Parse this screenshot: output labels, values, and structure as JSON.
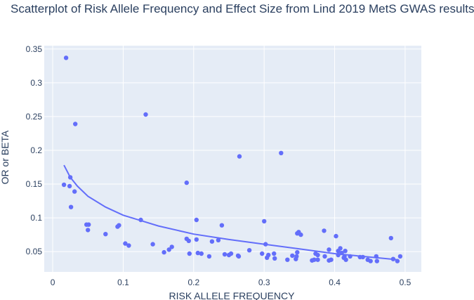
{
  "chart_data": {
    "type": "scatter",
    "title": "Scatterplot of Risk Allele Frequency and Effect Size from Lind 2019 MetS GWAS results",
    "xlabel": "RISK ALLELE FREQUENCY",
    "ylabel": "OR or BETA",
    "xlim": [
      -0.012,
      0.523
    ],
    "ylim": [
      0.02,
      0.355
    ],
    "x_ticks": [
      0,
      0.1,
      0.2,
      0.3,
      0.4,
      0.5
    ],
    "x_tick_labels": [
      "0",
      "0.1",
      "0.2",
      "0.3",
      "0.4",
      "0.5"
    ],
    "y_ticks": [
      0.05,
      0.1,
      0.15,
      0.2,
      0.25,
      0.3,
      0.35
    ],
    "y_tick_labels": [
      "0.05",
      "0.1",
      "0.15",
      "0.2",
      "0.25",
      "0.3",
      "0.35"
    ],
    "grid": true,
    "colors": {
      "marker": "#636efa",
      "plot_bg": "#e5ecf6",
      "grid": "#ffffff",
      "text": "#2a3f5f"
    },
    "points": [
      [
        0.019,
        0.337
      ],
      [
        0.032,
        0.239
      ],
      [
        0.132,
        0.253
      ],
      [
        0.265,
        0.191
      ],
      [
        0.324,
        0.196
      ],
      [
        0.016,
        0.149
      ],
      [
        0.024,
        0.147
      ],
      [
        0.025,
        0.16
      ],
      [
        0.031,
        0.139
      ],
      [
        0.026,
        0.116
      ],
      [
        0.19,
        0.152
      ],
      [
        0.048,
        0.09
      ],
      [
        0.051,
        0.09
      ],
      [
        0.05,
        0.082
      ],
      [
        0.075,
        0.076
      ],
      [
        0.092,
        0.087
      ],
      [
        0.094,
        0.089
      ],
      [
        0.103,
        0.062
      ],
      [
        0.108,
        0.059
      ],
      [
        0.125,
        0.097
      ],
      [
        0.142,
        0.061
      ],
      [
        0.158,
        0.049
      ],
      [
        0.165,
        0.053
      ],
      [
        0.169,
        0.057
      ],
      [
        0.19,
        0.069
      ],
      [
        0.193,
        0.066
      ],
      [
        0.194,
        0.047
      ],
      [
        0.204,
        0.097
      ],
      [
        0.204,
        0.068
      ],
      [
        0.206,
        0.048
      ],
      [
        0.211,
        0.047
      ],
      [
        0.222,
        0.043
      ],
      [
        0.226,
        0.065
      ],
      [
        0.235,
        0.067
      ],
      [
        0.24,
        0.089
      ],
      [
        0.244,
        0.046
      ],
      [
        0.25,
        0.045
      ],
      [
        0.253,
        0.047
      ],
      [
        0.263,
        0.044
      ],
      [
        0.264,
        0.043
      ],
      [
        0.279,
        0.052
      ],
      [
        0.297,
        0.047
      ],
      [
        0.3,
        0.095
      ],
      [
        0.302,
        0.061
      ],
      [
        0.304,
        0.041
      ],
      [
        0.306,
        0.045
      ],
      [
        0.314,
        0.047
      ],
      [
        0.315,
        0.04
      ],
      [
        0.333,
        0.038
      ],
      [
        0.34,
        0.044
      ],
      [
        0.345,
        0.039
      ],
      [
        0.346,
        0.043
      ],
      [
        0.347,
        0.049
      ],
      [
        0.347,
        0.077
      ],
      [
        0.349,
        0.079
      ],
      [
        0.352,
        0.075
      ],
      [
        0.368,
        0.037
      ],
      [
        0.371,
        0.038
      ],
      [
        0.373,
        0.047
      ],
      [
        0.376,
        0.038
      ],
      [
        0.376,
        0.045
      ],
      [
        0.385,
        0.081
      ],
      [
        0.386,
        0.043
      ],
      [
        0.392,
        0.053
      ],
      [
        0.392,
        0.037
      ],
      [
        0.395,
        0.038
      ],
      [
        0.402,
        0.073
      ],
      [
        0.405,
        0.045
      ],
      [
        0.405,
        0.051
      ],
      [
        0.408,
        0.055
      ],
      [
        0.41,
        0.048
      ],
      [
        0.413,
        0.041
      ],
      [
        0.414,
        0.043
      ],
      [
        0.416,
        0.038
      ],
      [
        0.415,
        0.051
      ],
      [
        0.422,
        0.043
      ],
      [
        0.436,
        0.042
      ],
      [
        0.44,
        0.042
      ],
      [
        0.447,
        0.038
      ],
      [
        0.451,
        0.036
      ],
      [
        0.459,
        0.043
      ],
      [
        0.46,
        0.036
      ],
      [
        0.48,
        0.07
      ],
      [
        0.483,
        0.039
      ],
      [
        0.489,
        0.036
      ],
      [
        0.493,
        0.043
      ]
    ],
    "trend": [
      [
        0.016,
        0.178
      ],
      [
        0.025,
        0.16
      ],
      [
        0.035,
        0.147
      ],
      [
        0.05,
        0.132
      ],
      [
        0.075,
        0.116
      ],
      [
        0.1,
        0.104
      ],
      [
        0.125,
        0.096
      ],
      [
        0.15,
        0.088
      ],
      [
        0.2,
        0.076
      ],
      [
        0.25,
        0.068
      ],
      [
        0.3,
        0.061
      ],
      [
        0.35,
        0.054
      ],
      [
        0.4,
        0.047
      ],
      [
        0.45,
        0.042
      ],
      [
        0.49,
        0.038
      ]
    ]
  }
}
